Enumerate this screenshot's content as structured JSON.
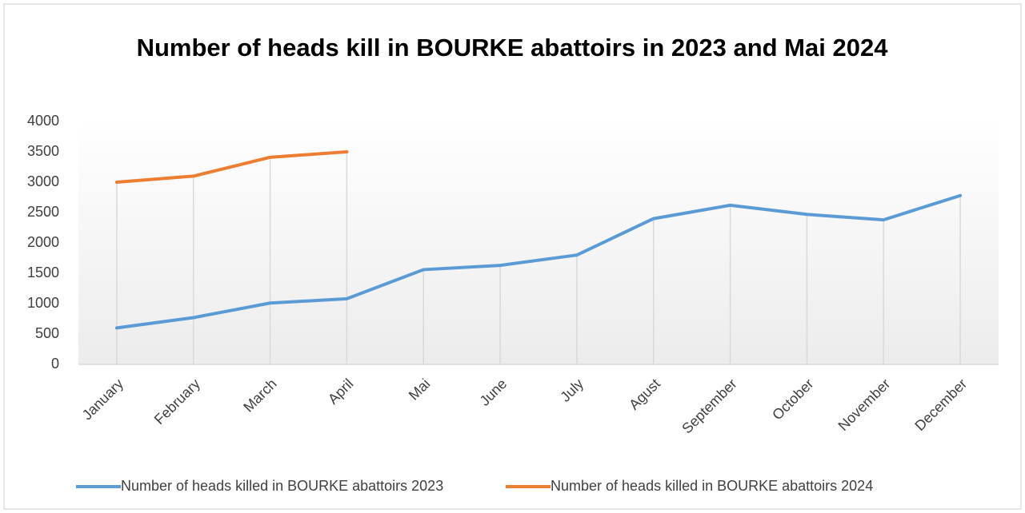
{
  "chart_data": {
    "type": "line",
    "title": "Number of heads kill in BOURKE abattoirs in 2023 and  Mai 2024",
    "categories": [
      "January",
      "February",
      "March",
      "April",
      "Mai",
      "June",
      "July",
      "Agust",
      "September",
      "October",
      "November",
      "December"
    ],
    "series": [
      {
        "name": "Number of heads killed in BOURKE abattoirs 2023",
        "color": "#5b9bd5",
        "values": [
          600,
          770,
          1010,
          1080,
          1560,
          1630,
          1800,
          2400,
          2620,
          2470,
          2380,
          2780
        ]
      },
      {
        "name": "Number of heads killed in BOURKE abattoirs 2024",
        "color": "#ed7d31",
        "values": [
          3000,
          3100,
          3410,
          3500,
          null,
          null,
          null,
          null,
          null,
          null,
          null,
          null
        ]
      }
    ],
    "ylim": [
      0,
      4000
    ],
    "yticks": [
      0,
      500,
      1000,
      1500,
      2000,
      2500,
      3000,
      3500,
      4000
    ],
    "grid": false,
    "legend": "bottom"
  }
}
